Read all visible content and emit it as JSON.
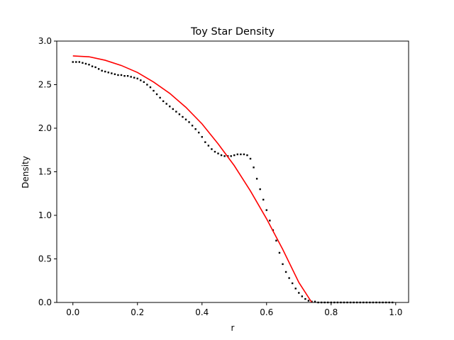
{
  "chart_data": {
    "type": "scatter",
    "title": "Toy Star Density",
    "xlabel": "r",
    "ylabel": "Density",
    "xlim": [
      -0.05,
      1.04
    ],
    "ylim": [
      0.0,
      3.0
    ],
    "xticks": [
      0.0,
      0.2,
      0.4,
      0.6,
      0.8,
      1.0
    ],
    "xtick_labels": [
      "0.0",
      "0.2",
      "0.4",
      "0.6",
      "0.8",
      "1.0"
    ],
    "yticks": [
      0.0,
      0.5,
      1.0,
      1.5,
      2.0,
      2.5,
      3.0
    ],
    "ytick_labels": [
      "0.0",
      "0.5",
      "1.0",
      "1.5",
      "2.0",
      "2.5",
      "3.0"
    ],
    "grid": false,
    "legend": "none",
    "series": [
      {
        "kind": "points",
        "color": "#000000",
        "x": [
          0.0,
          0.01,
          0.02,
          0.03,
          0.04,
          0.05,
          0.06,
          0.07,
          0.08,
          0.09,
          0.1,
          0.11,
          0.12,
          0.13,
          0.14,
          0.15,
          0.16,
          0.17,
          0.18,
          0.19,
          0.2,
          0.21,
          0.22,
          0.23,
          0.24,
          0.25,
          0.26,
          0.27,
          0.28,
          0.29,
          0.3,
          0.31,
          0.32,
          0.33,
          0.34,
          0.35,
          0.36,
          0.37,
          0.38,
          0.39,
          0.4,
          0.41,
          0.42,
          0.43,
          0.44,
          0.45,
          0.46,
          0.47,
          0.48,
          0.49,
          0.5,
          0.51,
          0.52,
          0.53,
          0.54,
          0.55,
          0.56,
          0.57,
          0.58,
          0.59,
          0.6,
          0.61,
          0.62,
          0.63,
          0.64,
          0.65,
          0.66,
          0.67,
          0.68,
          0.69,
          0.7,
          0.71,
          0.72,
          0.73,
          0.74,
          0.75,
          0.76,
          0.77,
          0.78,
          0.79,
          0.8,
          0.81,
          0.82,
          0.83,
          0.84,
          0.85,
          0.86,
          0.87,
          0.88,
          0.89,
          0.9,
          0.91,
          0.92,
          0.93,
          0.94,
          0.95,
          0.96,
          0.97,
          0.98,
          0.99
        ],
        "y": [
          2.76,
          2.76,
          2.76,
          2.75,
          2.74,
          2.73,
          2.71,
          2.7,
          2.68,
          2.66,
          2.65,
          2.64,
          2.63,
          2.62,
          2.61,
          2.61,
          2.6,
          2.6,
          2.59,
          2.58,
          2.57,
          2.55,
          2.53,
          2.5,
          2.47,
          2.43,
          2.39,
          2.35,
          2.31,
          2.28,
          2.25,
          2.22,
          2.19,
          2.16,
          2.13,
          2.1,
          2.07,
          2.03,
          1.99,
          1.95,
          1.9,
          1.84,
          1.8,
          1.76,
          1.73,
          1.71,
          1.69,
          1.68,
          1.68,
          1.68,
          1.69,
          1.7,
          1.7,
          1.7,
          1.69,
          1.65,
          1.55,
          1.42,
          1.3,
          1.18,
          1.06,
          0.94,
          0.83,
          0.71,
          0.57,
          0.44,
          0.35,
          0.28,
          0.22,
          0.16,
          0.11,
          0.07,
          0.04,
          0.02,
          0.01,
          0.01,
          0.0,
          0.0,
          0.0,
          0.0,
          0.0,
          0.0,
          0.0,
          0.0,
          0.0,
          0.0,
          0.0,
          0.0,
          0.0,
          0.0,
          0.0,
          0.0,
          0.0,
          0.0,
          0.0,
          0.0,
          0.0,
          0.0,
          0.0,
          0.0
        ]
      },
      {
        "kind": "line",
        "color": "#ff0000",
        "x": [
          0.0,
          0.05,
          0.1,
          0.15,
          0.2,
          0.25,
          0.3,
          0.35,
          0.4,
          0.45,
          0.5,
          0.55,
          0.6,
          0.65,
          0.7,
          0.74
        ],
        "y": [
          2.83,
          2.82,
          2.78,
          2.72,
          2.64,
          2.53,
          2.4,
          2.24,
          2.05,
          1.82,
          1.57,
          1.28,
          0.96,
          0.61,
          0.23,
          0.0
        ]
      }
    ]
  }
}
